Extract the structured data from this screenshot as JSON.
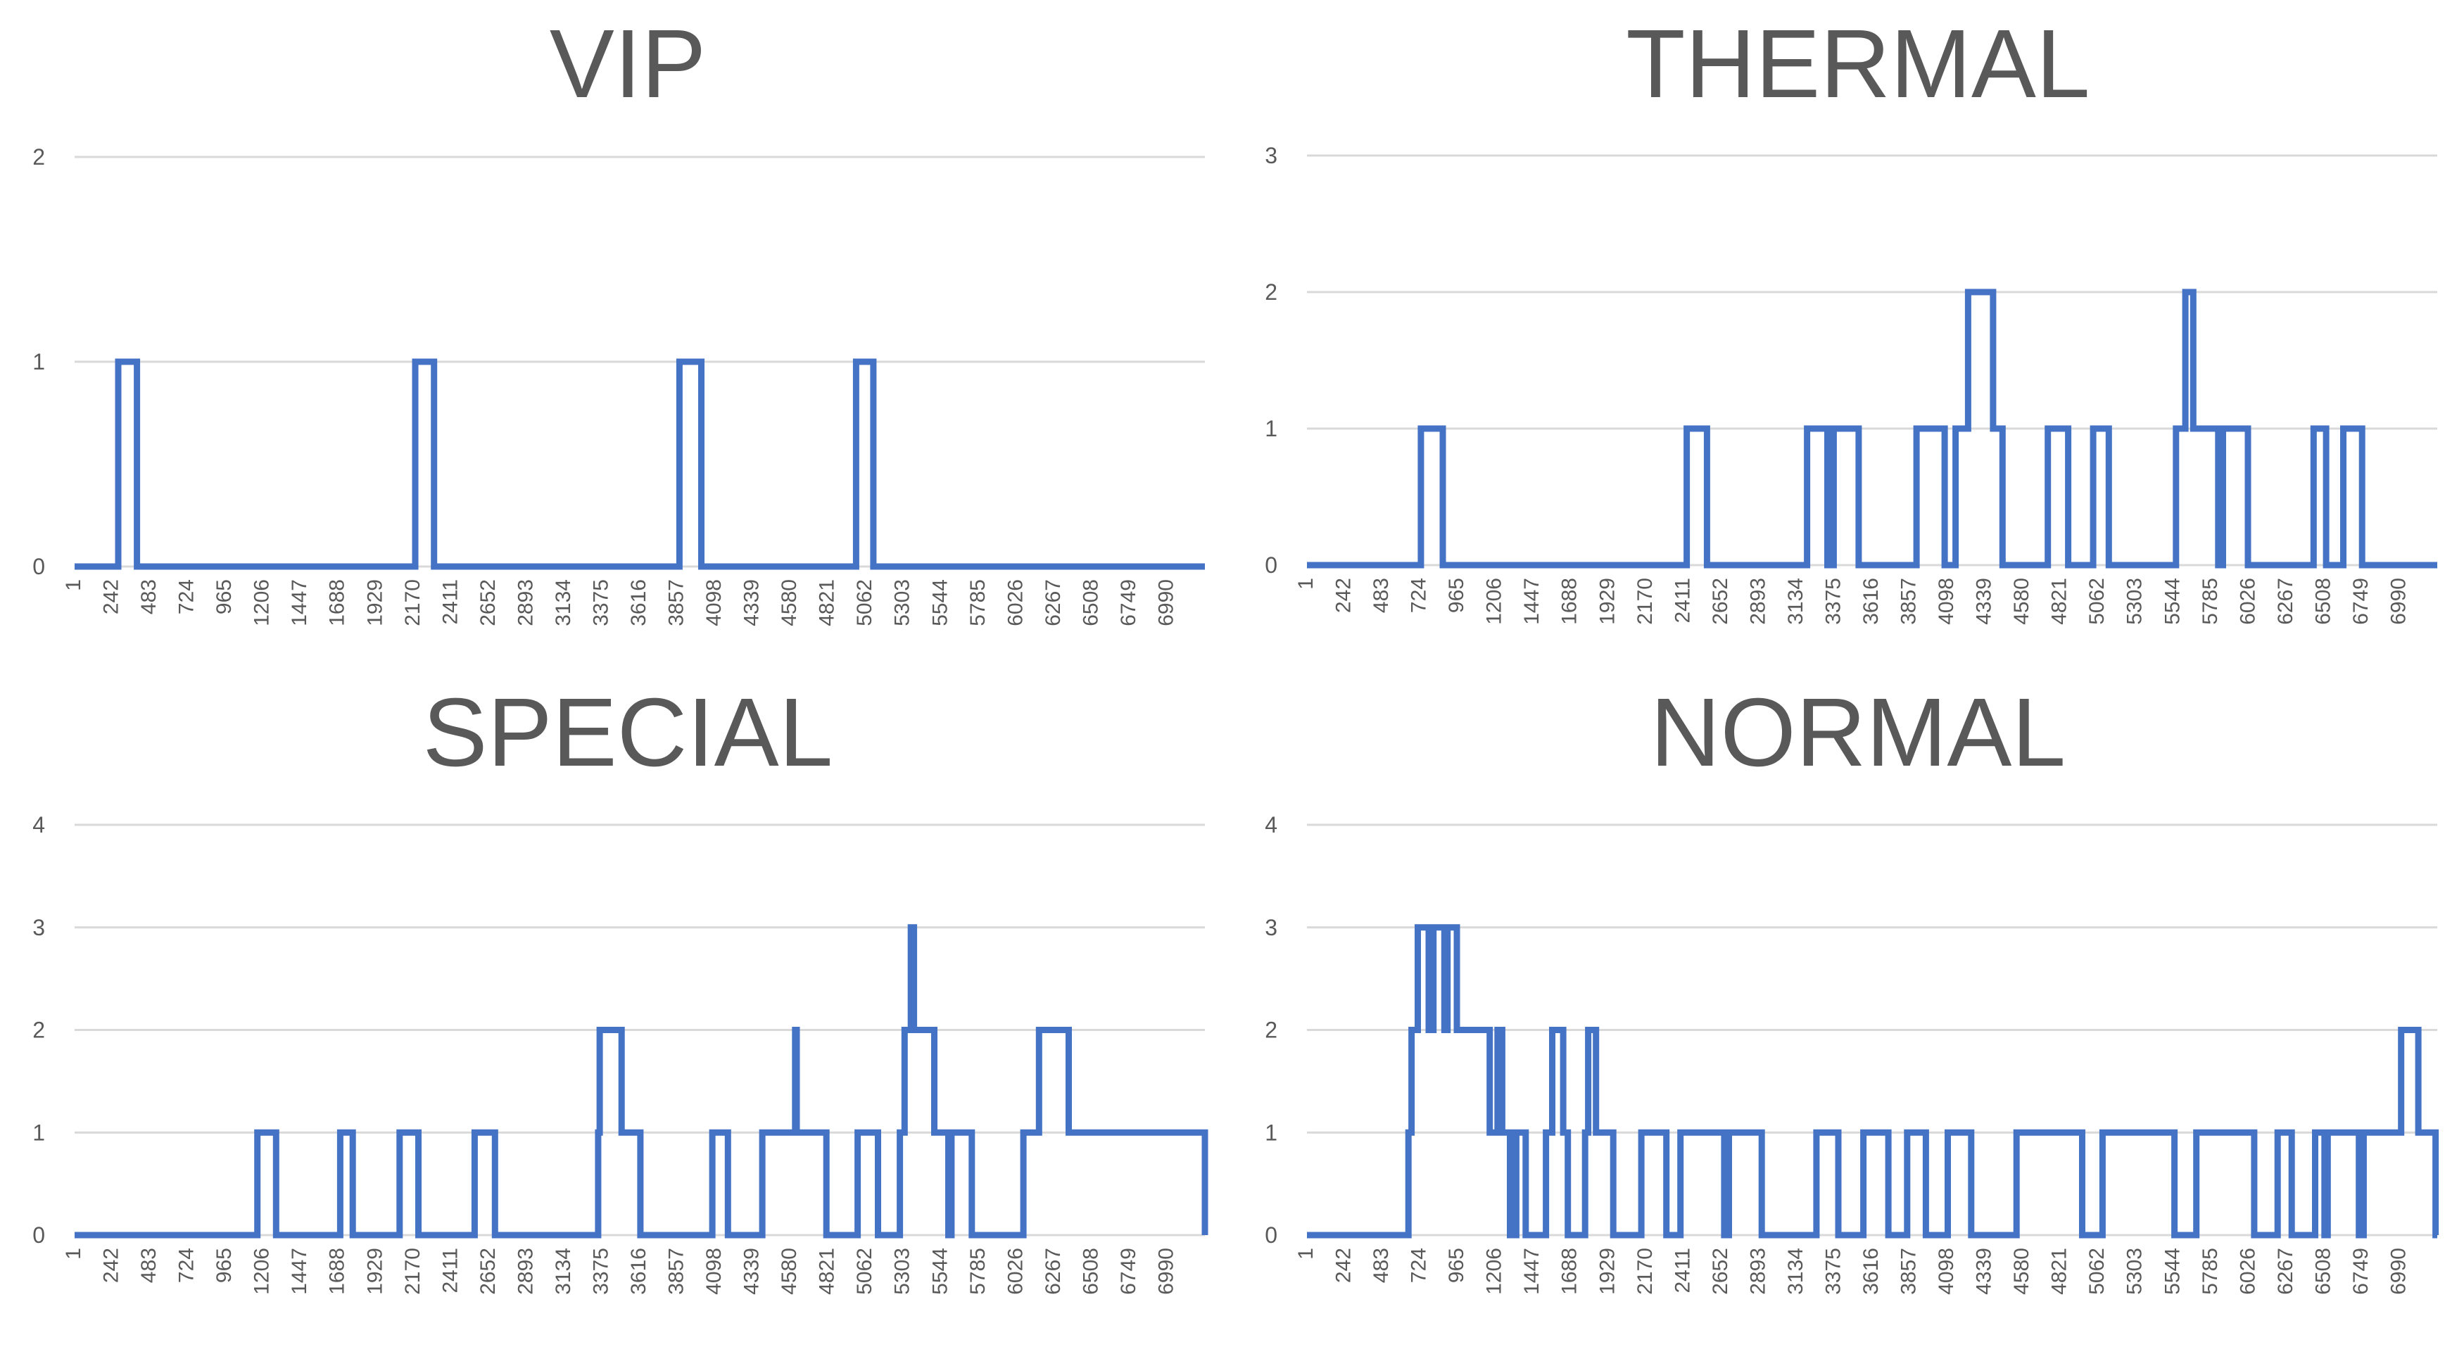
{
  "x_tick_labels": [
    "1",
    "242",
    "483",
    "724",
    "965",
    "1206",
    "1447",
    "1688",
    "1929",
    "2170",
    "2411",
    "2652",
    "2893",
    "3134",
    "3375",
    "3616",
    "3857",
    "4098",
    "4339",
    "4580",
    "4821",
    "5062",
    "5303",
    "5544",
    "5785",
    "6026",
    "6267",
    "6508",
    "6749",
    "6990"
  ],
  "colors": {
    "line": "#4472C4",
    "grid": "#D9D9D9",
    "text": "#595959"
  },
  "chart_data": [
    {
      "type": "line",
      "title": "VIP",
      "step": true,
      "x_range": [
        1,
        7231
      ],
      "ylim": [
        0,
        2
      ],
      "yticks": [
        0,
        1,
        2
      ],
      "grid": true,
      "series": [
        {
          "x": [
            1,
            280,
            400,
            2180,
            2300,
            3870,
            4010,
            5000,
            5110,
            7231
          ],
          "y": [
            0,
            1,
            0,
            1,
            0,
            1,
            0,
            1,
            0,
            0
          ]
        }
      ]
    },
    {
      "type": "line",
      "title": "THERMAL",
      "step": true,
      "x_range": [
        1,
        7231
      ],
      "ylim": [
        0,
        3
      ],
      "yticks": [
        0,
        1,
        2,
        3
      ],
      "grid": true,
      "series": [
        {
          "x": [
            1,
            730,
            870,
            2430,
            2560,
            3200,
            3330,
            3370,
            3530,
            3900,
            4080,
            4150,
            4230,
            4270,
            4390,
            4450,
            4740,
            4870,
            4930,
            5030,
            5130,
            5560,
            5620,
            5670,
            5830,
            5860,
            5900,
            5920,
            6020,
            6440,
            6520,
            6630,
            6750,
            7231
          ],
          "y": [
            0,
            1,
            0,
            1,
            0,
            1,
            0,
            1,
            0,
            1,
            0,
            1,
            2,
            2,
            1,
            0,
            1,
            0,
            0,
            1,
            0,
            1,
            2,
            1,
            0,
            1,
            1,
            1,
            0,
            1,
            0,
            1,
            0,
            0
          ]
        }
      ]
    },
    {
      "type": "line",
      "title": "SPECIAL",
      "step": true,
      "x_range": [
        1,
        7231
      ],
      "ylim": [
        0,
        4
      ],
      "yticks": [
        0,
        1,
        2,
        3,
        4
      ],
      "grid": true,
      "series": [
        {
          "x": [
            1,
            1170,
            1290,
            1700,
            1780,
            2080,
            2200,
            2560,
            2690,
            3350,
            3360,
            3500,
            3620,
            4080,
            4180,
            4400,
            4610,
            4620,
            4680,
            4810,
            4900,
            5010,
            5140,
            5280,
            5310,
            5350,
            5370,
            5500,
            5560,
            5590,
            5610,
            5740,
            6070,
            6160,
            6170,
            6360,
            7231
          ],
          "y": [
            0,
            1,
            0,
            1,
            0,
            1,
            0,
            1,
            0,
            1,
            2,
            1,
            0,
            1,
            0,
            1,
            2,
            1,
            1,
            0,
            0,
            1,
            0,
            1,
            2,
            3,
            2,
            1,
            1,
            0,
            1,
            0,
            1,
            1,
            2,
            1,
            0
          ]
        }
      ]
    },
    {
      "type": "line",
      "title": "NORMAL",
      "step": true,
      "x_range": [
        1,
        7231
      ],
      "ylim": [
        0,
        4
      ],
      "yticks": [
        0,
        1,
        2,
        3,
        4
      ],
      "grid": true,
      "series": [
        {
          "x": [
            1,
            650,
            670,
            710,
            780,
            810,
            880,
            900,
            960,
            1030,
            1170,
            1220,
            1250,
            1300,
            1340,
            1400,
            1530,
            1570,
            1640,
            1670,
            1780,
            1800,
            1850,
            1910,
            1960,
            2140,
            2300,
            2390,
            2670,
            2700,
            2820,
            2910,
            3260,
            3400,
            3560,
            3720,
            3840,
            3960,
            4100,
            4250,
            4380,
            4540,
            4960,
            5090,
            5550,
            5690,
            6060,
            6210,
            6300,
            6450,
            6510,
            6530,
            6560,
            6700,
            6730,
            6760,
            7000,
            7110,
            7220
          ],
          "y": [
            0,
            1,
            2,
            3,
            2,
            3,
            2,
            3,
            2,
            2,
            1,
            2,
            1,
            0,
            1,
            0,
            1,
            2,
            1,
            0,
            1,
            2,
            1,
            1,
            0,
            1,
            0,
            1,
            0,
            1,
            1,
            0,
            1,
            0,
            1,
            0,
            1,
            0,
            1,
            0,
            0,
            1,
            0,
            1,
            0,
            1,
            0,
            1,
            0,
            1,
            0,
            1,
            1,
            1,
            0,
            1,
            2,
            1,
            0
          ]
        }
      ]
    }
  ]
}
